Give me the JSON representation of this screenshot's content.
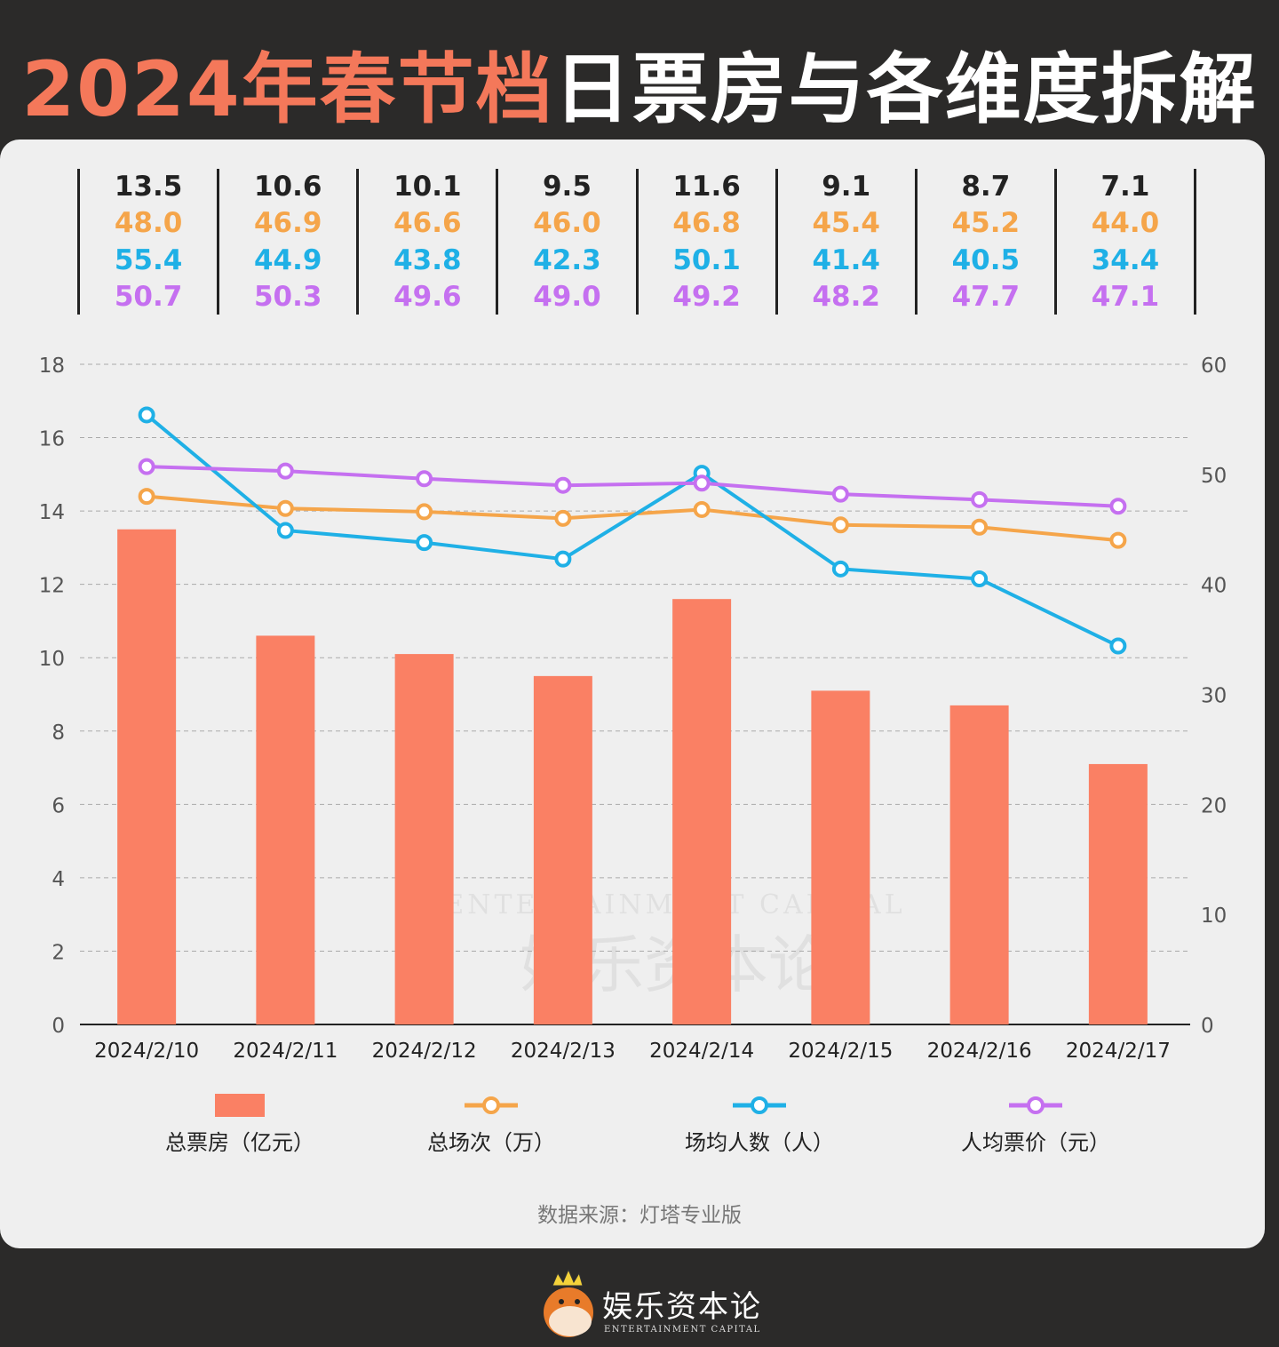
{
  "title": {
    "highlight": "2024年春节档",
    "rest": "日票房与各维度拆解"
  },
  "header_table": [
    [
      "13.5",
      "48.0",
      "55.4",
      "50.7"
    ],
    [
      "10.6",
      "46.9",
      "44.9",
      "50.3"
    ],
    [
      "10.1",
      "46.6",
      "43.8",
      "49.6"
    ],
    [
      "9.5",
      "46.0",
      "42.3",
      "49.0"
    ],
    [
      "11.6",
      "46.8",
      "50.1",
      "49.2"
    ],
    [
      "9.1",
      "45.4",
      "41.4",
      "48.2"
    ],
    [
      "8.7",
      "45.2",
      "40.5",
      "47.7"
    ],
    [
      "7.1",
      "44.0",
      "34.4",
      "47.1"
    ]
  ],
  "chart_data": {
    "type": "bar+line",
    "categories": [
      "2024/2/10",
      "2024/2/11",
      "2024/2/12",
      "2024/2/13",
      "2024/2/14",
      "2024/2/15",
      "2024/2/16",
      "2024/2/17"
    ],
    "series": [
      {
        "name": "总票房（亿元）",
        "type": "bar",
        "axis": "left",
        "color": "#fa8064",
        "values": [
          13.5,
          10.6,
          10.1,
          9.5,
          11.6,
          9.1,
          8.7,
          7.1
        ]
      },
      {
        "name": "总场次（万）",
        "type": "line",
        "axis": "right",
        "color": "#f5a54a",
        "values": [
          48.0,
          46.9,
          46.6,
          46.0,
          46.8,
          45.4,
          45.2,
          44.0
        ]
      },
      {
        "name": "场均人数（人）",
        "type": "line",
        "axis": "right",
        "color": "#1fb0e6",
        "values": [
          55.4,
          44.9,
          43.8,
          42.3,
          50.1,
          41.4,
          40.5,
          34.4
        ]
      },
      {
        "name": "人均票价（元）",
        "type": "line",
        "axis": "right",
        "color": "#c570f0",
        "values": [
          50.7,
          50.3,
          49.6,
          49.0,
          49.2,
          48.2,
          47.7,
          47.1
        ]
      }
    ],
    "left_axis": {
      "ylim": [
        0,
        18
      ],
      "ticks": [
        "0",
        "2",
        "4",
        "6",
        "8",
        "10",
        "12",
        "14",
        "16",
        "18"
      ]
    },
    "right_axis": {
      "ylim": [
        0,
        60
      ],
      "ticks": [
        "0",
        "10",
        "20",
        "30",
        "40",
        "50",
        "60"
      ]
    },
    "grid": true,
    "legend_placement": "bottom"
  },
  "source": "数据来源：灯塔专业版",
  "watermark": {
    "text": "娱乐资本论",
    "sub": "ENTERTAINMENT CAPITAL"
  },
  "logo": {
    "text": "娱乐资本论",
    "sub": "ENTERTAINMENT CAPITAL"
  }
}
